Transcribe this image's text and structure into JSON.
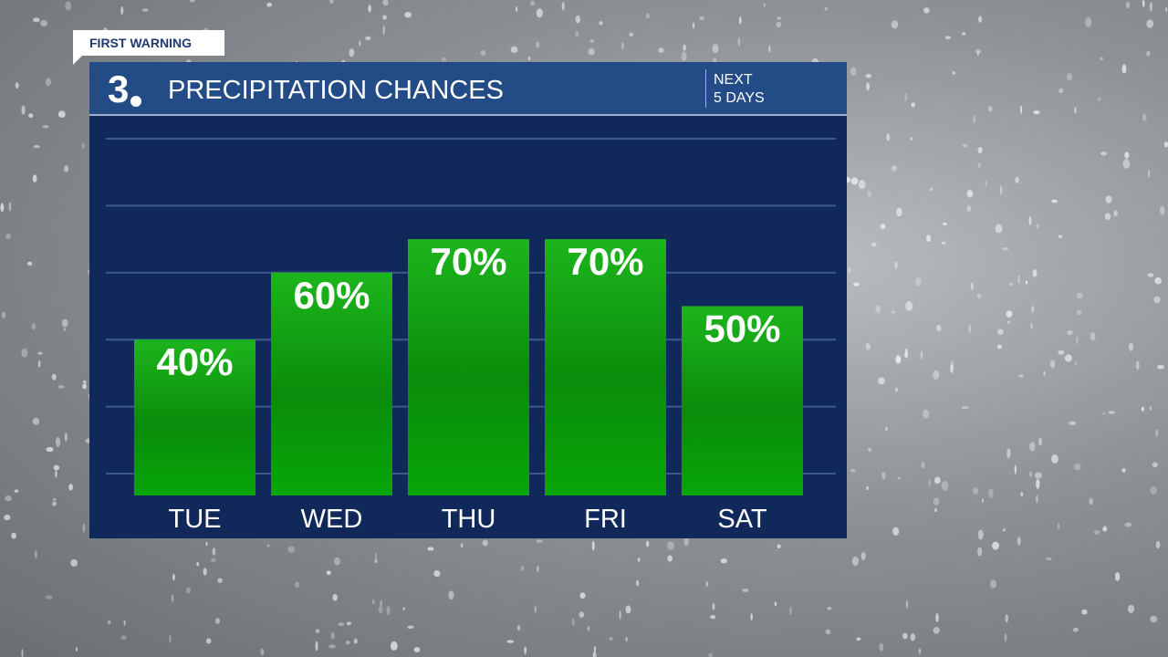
{
  "badge": "FIRST WARNING",
  "header": {
    "logo": "3",
    "title": "PRECIPITATION CHANCES",
    "period_line1": "NEXT",
    "period_line2": "5 DAYS"
  },
  "colors": {
    "panel": "#11295a",
    "header": "#234b86",
    "bar": "#12a612"
  },
  "chart_data": {
    "type": "bar",
    "title": "PRECIPITATION CHANCES",
    "categories": [
      "TUE",
      "WED",
      "THU",
      "FRI",
      "SAT"
    ],
    "values": [
      40,
      60,
      70,
      70,
      50
    ],
    "labels": [
      "40%",
      "60%",
      "70%",
      "70%",
      "50%"
    ],
    "ylim": [
      0,
      100
    ],
    "grid": true
  }
}
